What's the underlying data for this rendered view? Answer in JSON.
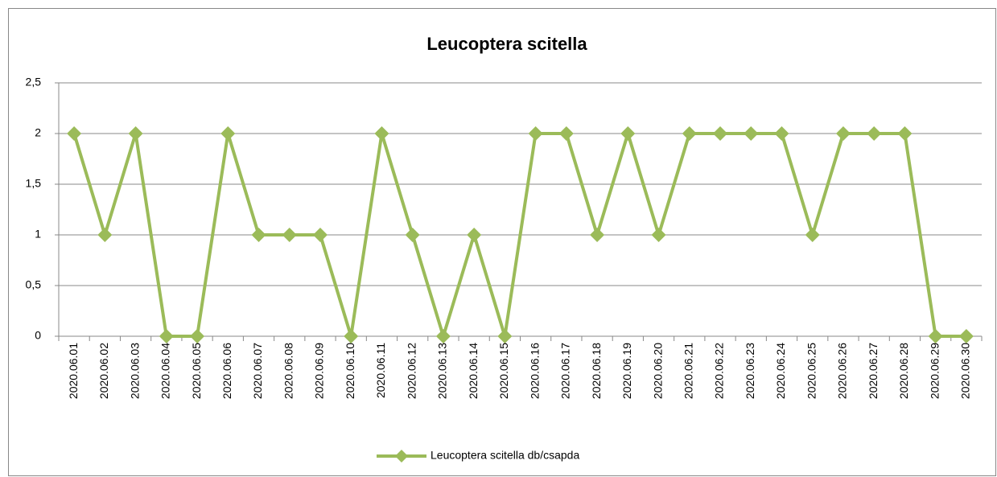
{
  "chart_data": {
    "type": "line",
    "title": "Leucoptera scitella",
    "categories": [
      "2020.06.01",
      "2020.06.02",
      "2020.06.03",
      "2020.06.04",
      "2020.06.05",
      "2020.06.06",
      "2020.06.07",
      "2020.06.08",
      "2020.06.09",
      "2020.06.10",
      "2020.06.11",
      "2020.06.12",
      "2020.06.13",
      "2020.06.14",
      "2020.06.15",
      "2020.06.16",
      "2020.06.17",
      "2020.06.18",
      "2020.06.19",
      "2020.06.20",
      "2020.06.21",
      "2020.06.22",
      "2020.06.23",
      "2020.06.24",
      "2020.06.25",
      "2020.06.26",
      "2020.06.27",
      "2020.06.28",
      "2020.06.29",
      "2020.06.30"
    ],
    "series": [
      {
        "name": "Leucoptera scitella db/csapda",
        "color": "#9bbb59",
        "values": [
          2,
          1,
          2,
          0,
          0,
          2,
          1,
          1,
          1,
          0,
          2,
          1,
          0,
          1,
          0,
          2,
          2,
          1,
          2,
          1,
          2,
          2,
          2,
          2,
          1,
          2,
          2,
          2,
          0,
          0
        ]
      }
    ],
    "ylim": [
      0,
      2.5
    ],
    "yticks": [
      0,
      {
        "value": 0.5,
        "label": "0,5"
      },
      1,
      {
        "value": 1.5,
        "label": "1,5"
      },
      2,
      {
        "value": 2.5,
        "label": "2,5"
      }
    ],
    "grid": true,
    "legend": "bottom"
  }
}
